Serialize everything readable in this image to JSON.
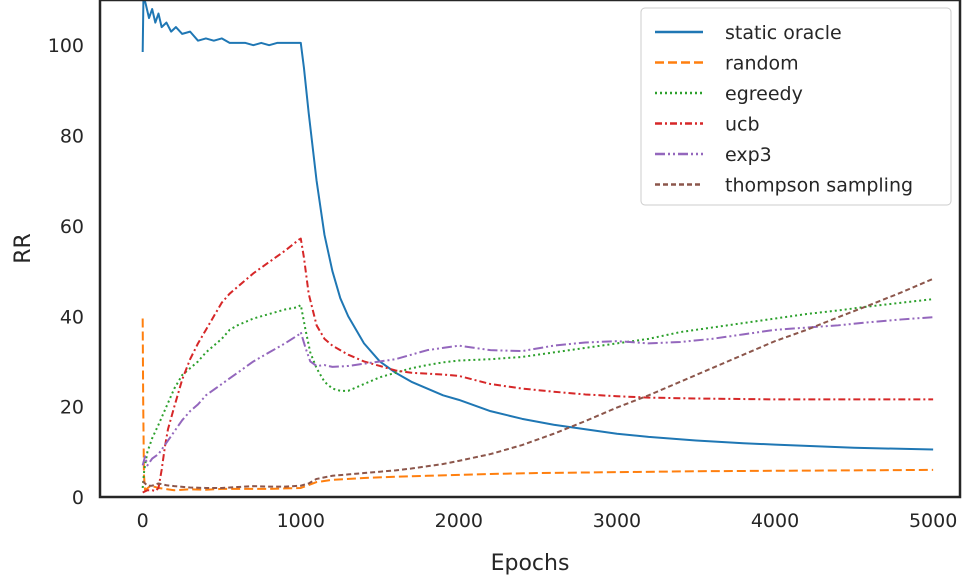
{
  "chart_data": {
    "type": "line",
    "xlabel": "Epochs",
    "ylabel": "RR",
    "xlim": [
      -270,
      5170
    ],
    "ylim": [
      0,
      110
    ],
    "xticks": [
      0,
      1000,
      2000,
      3000,
      4000,
      5000
    ],
    "yticks": [
      0,
      20,
      40,
      60,
      80,
      100
    ],
    "grid": false,
    "legend_position": "top-right",
    "series": [
      {
        "name": "static oracle",
        "color": "#1f77b4",
        "dash": "solid",
        "points": [
          [
            0,
            98.5
          ],
          [
            5,
            111
          ],
          [
            20,
            109
          ],
          [
            40,
            106
          ],
          [
            60,
            108
          ],
          [
            80,
            105
          ],
          [
            100,
            107
          ],
          [
            120,
            104
          ],
          [
            150,
            105
          ],
          [
            180,
            103
          ],
          [
            210,
            104
          ],
          [
            250,
            102.5
          ],
          [
            300,
            103
          ],
          [
            350,
            101
          ],
          [
            400,
            101.5
          ],
          [
            450,
            101
          ],
          [
            500,
            101.5
          ],
          [
            550,
            100.5
          ],
          [
            600,
            100.5
          ],
          [
            650,
            100.5
          ],
          [
            700,
            100
          ],
          [
            750,
            100.5
          ],
          [
            800,
            100
          ],
          [
            850,
            100.5
          ],
          [
            900,
            100.5
          ],
          [
            950,
            100.5
          ],
          [
            1000,
            100.5
          ],
          [
            1020,
            95
          ],
          [
            1050,
            85
          ],
          [
            1100,
            70
          ],
          [
            1150,
            58
          ],
          [
            1200,
            50
          ],
          [
            1250,
            44
          ],
          [
            1300,
            40
          ],
          [
            1400,
            34
          ],
          [
            1500,
            30
          ],
          [
            1600,
            27.5
          ],
          [
            1700,
            25.5
          ],
          [
            1800,
            24
          ],
          [
            1900,
            22.5
          ],
          [
            2000,
            21.5
          ],
          [
            2200,
            19
          ],
          [
            2400,
            17.3
          ],
          [
            2600,
            16
          ],
          [
            2800,
            15
          ],
          [
            3000,
            14
          ],
          [
            3200,
            13.3
          ],
          [
            3500,
            12.5
          ],
          [
            3800,
            11.9
          ],
          [
            4000,
            11.6
          ],
          [
            4500,
            10.9
          ],
          [
            5000,
            10.5
          ]
        ]
      },
      {
        "name": "random",
        "color": "#ff7f0e",
        "dash": "dashed",
        "points": [
          [
            0,
            39.5
          ],
          [
            3,
            22
          ],
          [
            8,
            5
          ],
          [
            15,
            1.5
          ],
          [
            50,
            2.5
          ],
          [
            100,
            2
          ],
          [
            200,
            1.5
          ],
          [
            300,
            1.7
          ],
          [
            400,
            1.6
          ],
          [
            500,
            1.8
          ],
          [
            600,
            1.8
          ],
          [
            700,
            1.8
          ],
          [
            800,
            1.8
          ],
          [
            900,
            1.9
          ],
          [
            1000,
            2
          ],
          [
            1100,
            3.3
          ],
          [
            1200,
            3.8
          ],
          [
            1400,
            4.2
          ],
          [
            1600,
            4.5
          ],
          [
            1800,
            4.7
          ],
          [
            2000,
            4.9
          ],
          [
            2200,
            5.1
          ],
          [
            2500,
            5.3
          ],
          [
            3000,
            5.5
          ],
          [
            3500,
            5.7
          ],
          [
            4000,
            5.8
          ],
          [
            4500,
            5.9
          ],
          [
            5000,
            6
          ]
        ]
      },
      {
        "name": "egreedy",
        "color": "#2ca02c",
        "dash": "dotted",
        "points": [
          [
            0,
            2
          ],
          [
            10,
            6
          ],
          [
            30,
            10
          ],
          [
            60,
            13
          ],
          [
            100,
            16
          ],
          [
            150,
            20
          ],
          [
            200,
            24
          ],
          [
            250,
            27
          ],
          [
            300,
            28.5
          ],
          [
            350,
            30
          ],
          [
            400,
            32
          ],
          [
            450,
            33.5
          ],
          [
            500,
            35
          ],
          [
            550,
            37
          ],
          [
            600,
            38
          ],
          [
            700,
            39.5
          ],
          [
            800,
            40.5
          ],
          [
            900,
            41.5
          ],
          [
            980,
            42
          ],
          [
            1000,
            42.5
          ],
          [
            1030,
            37
          ],
          [
            1060,
            32
          ],
          [
            1100,
            28.5
          ],
          [
            1150,
            25.5
          ],
          [
            1200,
            24
          ],
          [
            1250,
            23.5
          ],
          [
            1300,
            23.5
          ],
          [
            1400,
            25
          ],
          [
            1500,
            26.5
          ],
          [
            1600,
            27.5
          ],
          [
            1700,
            28.5
          ],
          [
            1800,
            29.2
          ],
          [
            1900,
            29.8
          ],
          [
            2000,
            30.2
          ],
          [
            2200,
            30.5
          ],
          [
            2400,
            31
          ],
          [
            2600,
            32
          ],
          [
            2800,
            33
          ],
          [
            3000,
            34
          ],
          [
            3200,
            35
          ],
          [
            3400,
            36.5
          ],
          [
            3600,
            37.5
          ],
          [
            3800,
            38.5
          ],
          [
            4000,
            39.5
          ],
          [
            4200,
            40.5
          ],
          [
            4400,
            41.3
          ],
          [
            4600,
            42.2
          ],
          [
            4800,
            43
          ],
          [
            5000,
            43.8
          ]
        ]
      },
      {
        "name": "ucb",
        "color": "#d62728",
        "dash": "dashdot",
        "points": [
          [
            0,
            1
          ],
          [
            30,
            1.5
          ],
          [
            60,
            1.5
          ],
          [
            80,
            1.3
          ],
          [
            100,
            2
          ],
          [
            120,
            6
          ],
          [
            140,
            11
          ],
          [
            160,
            15
          ],
          [
            200,
            20
          ],
          [
            250,
            26
          ],
          [
            300,
            30.5
          ],
          [
            350,
            34
          ],
          [
            400,
            37
          ],
          [
            450,
            40
          ],
          [
            500,
            43
          ],
          [
            550,
            45
          ],
          [
            600,
            46.5
          ],
          [
            700,
            49.5
          ],
          [
            800,
            52
          ],
          [
            900,
            54.5
          ],
          [
            990,
            57
          ],
          [
            1000,
            57.2
          ],
          [
            1020,
            53
          ],
          [
            1050,
            45
          ],
          [
            1100,
            38
          ],
          [
            1150,
            35
          ],
          [
            1200,
            33.5
          ],
          [
            1300,
            31.5
          ],
          [
            1400,
            30
          ],
          [
            1500,
            29
          ],
          [
            1600,
            28
          ],
          [
            1700,
            27.5
          ],
          [
            1800,
            27.3
          ],
          [
            1900,
            27.1
          ],
          [
            2000,
            26.8
          ],
          [
            2200,
            25
          ],
          [
            2400,
            24
          ],
          [
            2600,
            23.3
          ],
          [
            2800,
            22.7
          ],
          [
            3000,
            22.3
          ],
          [
            3200,
            22
          ],
          [
            3500,
            21.8
          ],
          [
            4000,
            21.6
          ],
          [
            4500,
            21.6
          ],
          [
            5000,
            21.6
          ]
        ]
      },
      {
        "name": "exp3",
        "color": "#9467bd",
        "dash": "dashdotdot",
        "points": [
          [
            0,
            7
          ],
          [
            15,
            9
          ],
          [
            30,
            7
          ],
          [
            60,
            8.5
          ],
          [
            100,
            9.5
          ],
          [
            150,
            12
          ],
          [
            200,
            14.5
          ],
          [
            250,
            17
          ],
          [
            300,
            19
          ],
          [
            350,
            20.5
          ],
          [
            400,
            22.5
          ],
          [
            500,
            25
          ],
          [
            600,
            27.5
          ],
          [
            700,
            30
          ],
          [
            800,
            32
          ],
          [
            900,
            34
          ],
          [
            990,
            36
          ],
          [
            1000,
            36.5
          ],
          [
            1030,
            33
          ],
          [
            1060,
            30
          ],
          [
            1100,
            29
          ],
          [
            1150,
            29.2
          ],
          [
            1200,
            28.8
          ],
          [
            1300,
            29
          ],
          [
            1400,
            29.5
          ],
          [
            1500,
            30
          ],
          [
            1600,
            30.5
          ],
          [
            1700,
            31.5
          ],
          [
            1800,
            32.5
          ],
          [
            1900,
            33
          ],
          [
            2000,
            33.5
          ],
          [
            2100,
            33
          ],
          [
            2200,
            32.5
          ],
          [
            2400,
            32.3
          ],
          [
            2600,
            33.5
          ],
          [
            2800,
            34.2
          ],
          [
            3000,
            34.5
          ],
          [
            3200,
            34
          ],
          [
            3400,
            34.3
          ],
          [
            3600,
            35
          ],
          [
            3800,
            36
          ],
          [
            4000,
            37
          ],
          [
            4200,
            37.5
          ],
          [
            4400,
            38
          ],
          [
            4600,
            38.7
          ],
          [
            4800,
            39.3
          ],
          [
            5000,
            39.8
          ]
        ]
      },
      {
        "name": "thompson sampling",
        "color": "#8c564b",
        "dash": "dashed-fine",
        "points": [
          [
            0,
            3.5
          ],
          [
            30,
            2.5
          ],
          [
            60,
            2.5
          ],
          [
            100,
            3
          ],
          [
            150,
            2.6
          ],
          [
            200,
            2.4
          ],
          [
            300,
            2.1
          ],
          [
            400,
            2
          ],
          [
            500,
            2
          ],
          [
            600,
            2.2
          ],
          [
            700,
            2.4
          ],
          [
            800,
            2.3
          ],
          [
            900,
            2.3
          ],
          [
            1000,
            2.5
          ],
          [
            1050,
            3
          ],
          [
            1100,
            4
          ],
          [
            1200,
            4.7
          ],
          [
            1300,
            5
          ],
          [
            1400,
            5.3
          ],
          [
            1500,
            5.6
          ],
          [
            1600,
            5.9
          ],
          [
            1700,
            6.3
          ],
          [
            1800,
            6.8
          ],
          [
            1900,
            7.3
          ],
          [
            2000,
            8
          ],
          [
            2200,
            9.5
          ],
          [
            2400,
            11.5
          ],
          [
            2600,
            14
          ],
          [
            2800,
            16.8
          ],
          [
            3000,
            19.8
          ],
          [
            3200,
            22.5
          ],
          [
            3400,
            25.5
          ],
          [
            3600,
            28.5
          ],
          [
            3800,
            31.5
          ],
          [
            4000,
            34.5
          ],
          [
            4200,
            37
          ],
          [
            4400,
            39.8
          ],
          [
            4600,
            42.5
          ],
          [
            4800,
            45.3
          ],
          [
            5000,
            48.3
          ]
        ]
      }
    ]
  }
}
